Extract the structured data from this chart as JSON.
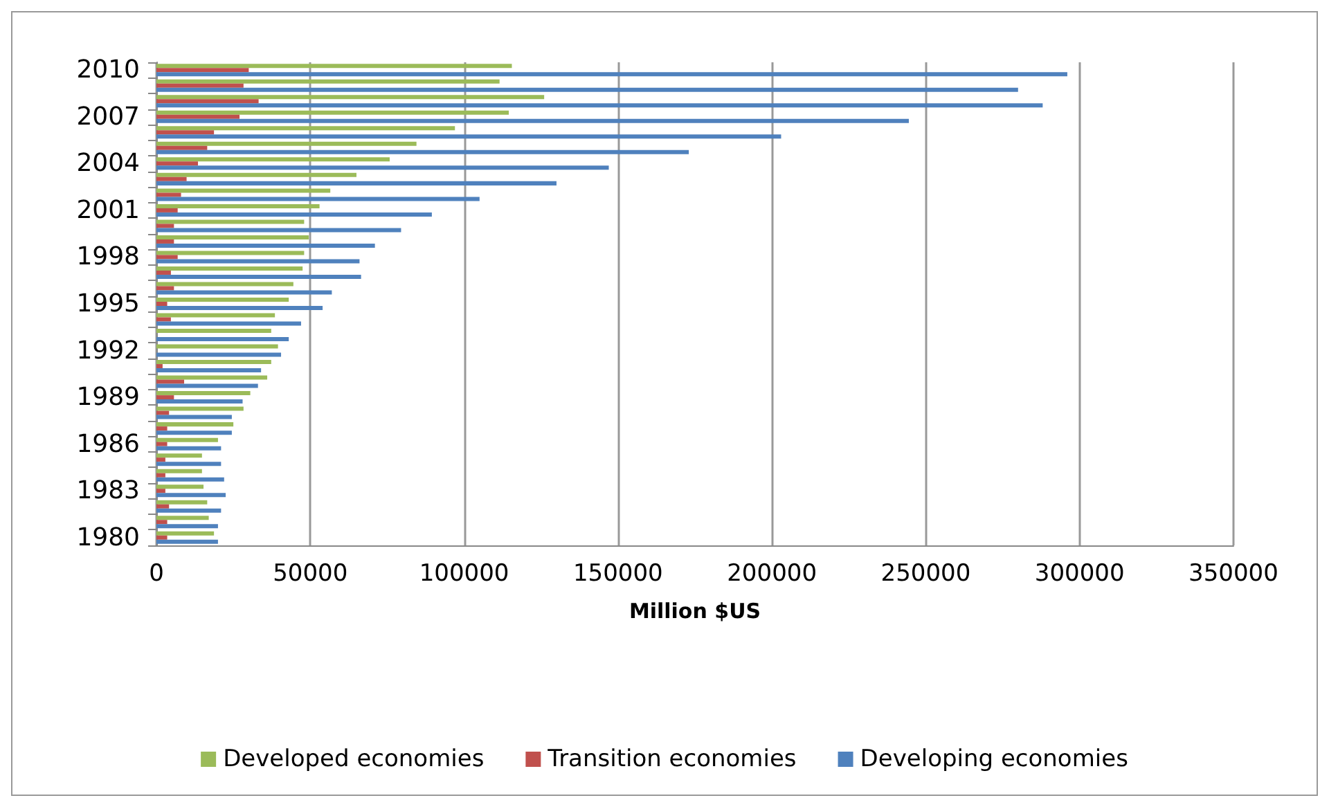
{
  "chart_data": {
    "type": "bar",
    "orientation": "horizontal",
    "xlabel": "Million $US",
    "categories": [
      "2010",
      null,
      null,
      "2007",
      null,
      null,
      "2004",
      null,
      null,
      "2001",
      null,
      null,
      "1998",
      null,
      null,
      "1995",
      null,
      null,
      "1992",
      null,
      null,
      "1989",
      null,
      null,
      "1986",
      null,
      null,
      "1983",
      null,
      null,
      "1980"
    ],
    "series": [
      {
        "name": "Developed economies",
        "color": "#9bbb59",
        "values": [
          115500,
          111500,
          126000,
          114500,
          97000,
          84500,
          75800,
          65000,
          56500,
          53000,
          48000,
          49500,
          48000,
          47500,
          44500,
          43000,
          38500,
          37300,
          39500,
          37300,
          36000,
          30500,
          28300,
          25000,
          20000,
          14800,
          14800,
          15300,
          16500,
          17000,
          18700
        ]
      },
      {
        "name": "Transition economies",
        "color": "#c0504d",
        "values": [
          30000,
          28300,
          33200,
          27000,
          18700,
          16500,
          13500,
          9800,
          8000,
          6900,
          5700,
          5700,
          6900,
          4700,
          5700,
          3500,
          4700,
          null,
          null,
          2000,
          9000,
          5700,
          4100,
          3500,
          3500,
          2900,
          2900,
          2900,
          4100,
          3500,
          3500
        ]
      },
      {
        "name": "Developing economies",
        "color": "#4f81bd",
        "values": [
          296000,
          280000,
          288000,
          244500,
          203000,
          173000,
          147000,
          130000,
          105000,
          89500,
          79500,
          71000,
          66000,
          66500,
          57000,
          54000,
          47000,
          43000,
          40500,
          34000,
          33000,
          28000,
          24500,
          24500,
          21000,
          21000,
          22000,
          22500,
          21000,
          20000,
          20000
        ]
      }
    ],
    "xlim": [
      0,
      350000
    ],
    "xticks": [
      0,
      50000,
      100000,
      150000,
      200000,
      250000,
      300000,
      350000
    ],
    "grid": "x",
    "legend": "bottom"
  }
}
